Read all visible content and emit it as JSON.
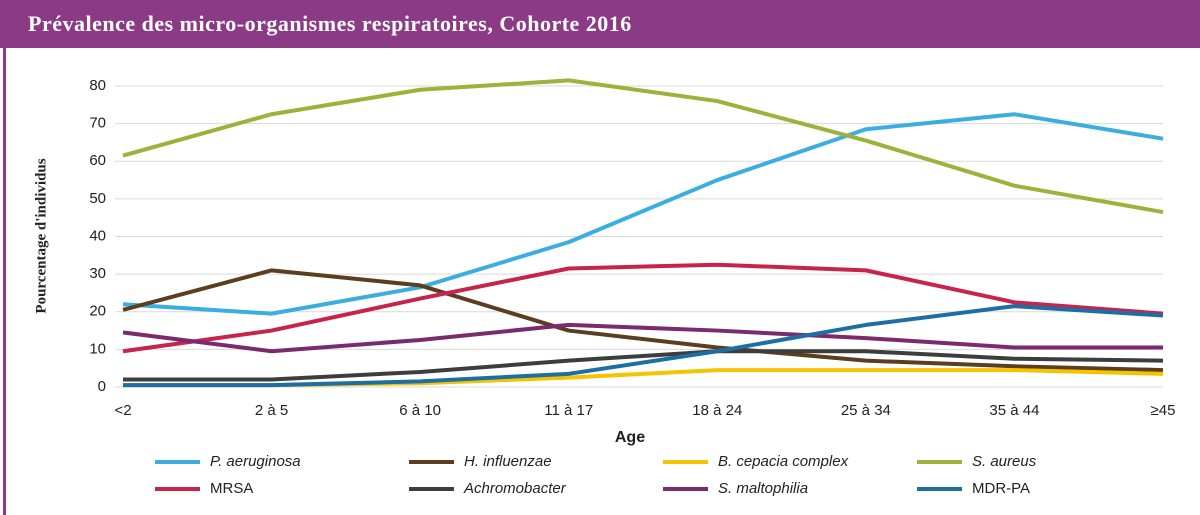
{
  "chart_data": {
    "type": "line",
    "title": "Prévalence des micro-organismes respiratoires, Cohorte 2016",
    "x_label": "Age",
    "y_label": "Pourcentage d'individus",
    "categories": [
      "<2",
      "2 à 5",
      "6 à 10",
      "11 à 17",
      "18 à 24",
      "25 à 34",
      "35 à 44",
      "≥45"
    ],
    "ylim": [
      0,
      80
    ],
    "yticks": [
      0,
      10,
      20,
      30,
      40,
      50,
      60,
      70,
      80
    ],
    "grid": true,
    "series": [
      {
        "name": "P. aeruginosa",
        "italic": true,
        "color": "#3aaee0",
        "values": [
          22,
          19.5,
          26.5,
          38.5,
          55,
          68.5,
          72.5,
          66
        ]
      },
      {
        "name": "H. influenzae",
        "italic": true,
        "color": "#5c3d1e",
        "values": [
          20.5,
          31,
          27,
          15,
          10.5,
          7,
          5.5,
          4.5
        ]
      },
      {
        "name": "B. cepacia complex",
        "italic": true,
        "color": "#f5c400",
        "values": [
          0.5,
          0.5,
          1,
          2.5,
          4.5,
          4.5,
          4.5,
          3.5
        ]
      },
      {
        "name": "S. aureus",
        "italic": true,
        "color": "#9ab33a",
        "values": [
          61.5,
          72.5,
          79,
          81.5,
          76,
          65.5,
          53.5,
          46.5
        ]
      },
      {
        "name": "MRSA",
        "italic": false,
        "color": "#c8234a",
        "values": [
          9.5,
          15,
          23.5,
          31.5,
          32.5,
          31,
          22.5,
          19.5
        ]
      },
      {
        "name": "Achromobacter",
        "italic": true,
        "color": "#3d3d3d",
        "values": [
          2,
          2,
          4,
          7,
          9.5,
          9.5,
          7.5,
          7
        ]
      },
      {
        "name": "S. maltophilia",
        "italic": true,
        "color": "#7c2a6e",
        "values": [
          14.5,
          9.5,
          12.5,
          16.5,
          15,
          13,
          10.5,
          10.5
        ]
      },
      {
        "name": "MDR-PA",
        "italic": false,
        "color": "#1d6fa3",
        "values": [
          0.5,
          0.5,
          1.5,
          3.5,
          9.5,
          16.5,
          21.5,
          19
        ]
      }
    ]
  }
}
